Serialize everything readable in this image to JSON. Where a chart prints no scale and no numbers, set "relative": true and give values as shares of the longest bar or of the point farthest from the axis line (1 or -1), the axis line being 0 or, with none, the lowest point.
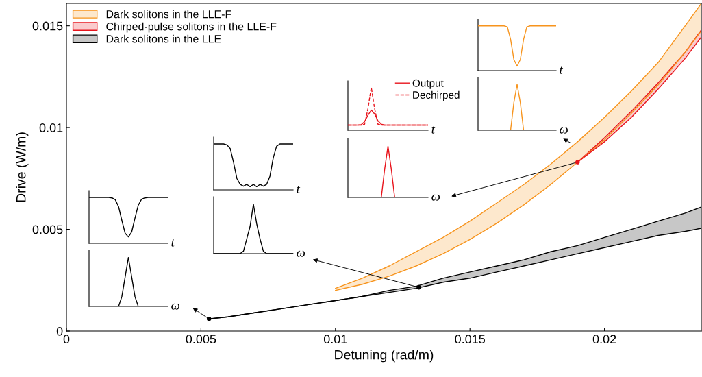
{
  "chart_data": [
    {
      "type": "line",
      "xlabel": "Detuning (rad/m)",
      "ylabel": "Drive (W/m)",
      "xlim": [
        0,
        0.0236
      ],
      "ylim": [
        0,
        0.0161
      ],
      "xticks": [
        0,
        0.005,
        0.01,
        0.015,
        0.02
      ],
      "yticks": [
        0,
        0.005,
        0.01,
        0.015
      ],
      "legend": "top left",
      "series": [
        {
          "name": "Dark solitons in the LLE-F",
          "color": "#f7941d",
          "x": [
            0.01,
            0.011,
            0.012,
            0.013,
            0.014,
            0.015,
            0.016,
            0.017,
            0.018,
            0.019,
            0.02,
            0.021,
            0.022,
            0.023,
            0.0236
          ],
          "values": [
            0.0021,
            0.0026,
            0.0032,
            0.0039,
            0.0046,
            0.0054,
            0.0063,
            0.0072,
            0.0082,
            0.0093,
            0.0105,
            0.0118,
            0.0132,
            0.015,
            0.0161
          ],
          "lower": [
            0.002,
            0.0023,
            0.0027,
            0.0032,
            0.0038,
            0.0045,
            0.0053,
            0.0062,
            0.0072,
            0.0083,
            0.0094,
            0.0107,
            0.0121,
            0.0137,
            0.01475
          ],
          "upper": [
            0.0021,
            0.0026,
            0.0032,
            0.0039,
            0.0046,
            0.0054,
            0.0063,
            0.0072,
            0.0082,
            0.0093,
            0.0105,
            0.0118,
            0.0132,
            0.015,
            0.0161
          ]
        },
        {
          "name": "Chirped-pulse solitons in the LLE-F",
          "color": "#e8141c",
          "x": [
            0.019,
            0.02,
            0.021,
            0.022,
            0.023,
            0.0236
          ],
          "values": [
            0.0083,
            0.0095,
            0.0108,
            0.0122,
            0.0137,
            0.0148
          ],
          "lower": [
            0.0083,
            0.0093,
            0.0105,
            0.0119,
            0.0134,
            0.01445
          ],
          "upper": [
            0.0083,
            0.0095,
            0.0108,
            0.0122,
            0.0137,
            0.0148
          ]
        },
        {
          "name": "Dark solitons in the LLE",
          "color": "#000000",
          "x": [
            0.0053,
            0.006,
            0.007,
            0.008,
            0.009,
            0.01,
            0.011,
            0.012,
            0.013,
            0.014,
            0.015,
            0.016,
            0.017,
            0.018,
            0.019,
            0.02,
            0.021,
            0.022,
            0.023,
            0.0236
          ],
          "values": [
            0.0006,
            0.0007,
            0.0009,
            0.0011,
            0.0013,
            0.0015,
            0.0017,
            0.002,
            0.0022,
            0.0026,
            0.0029,
            0.0032,
            0.0035,
            0.0039,
            0.0042,
            0.0046,
            0.005,
            0.0054,
            0.0058,
            0.0061
          ],
          "lower": [
            0.0006,
            0.0007,
            0.0009,
            0.0011,
            0.0013,
            0.0015,
            0.0017,
            0.0019,
            0.0021,
            0.0024,
            0.0026,
            0.0029,
            0.0032,
            0.0035,
            0.0038,
            0.0041,
            0.0044,
            0.0047,
            0.0049,
            0.00505
          ],
          "upper": [
            0.0006,
            0.0007,
            0.0009,
            0.0011,
            0.0013,
            0.0015,
            0.0017,
            0.002,
            0.0022,
            0.0026,
            0.0029,
            0.0032,
            0.0035,
            0.0039,
            0.0042,
            0.0046,
            0.005,
            0.0054,
            0.0058,
            0.0061
          ]
        },
        {
          "color": "#f7941d",
          "x": [
            0.01,
            0.011,
            0.012,
            0.013,
            0.014,
            0.015,
            0.016,
            0.017,
            0.018,
            0.019,
            0.02,
            0.021,
            0.022,
            0.023,
            0.0236
          ],
          "values": [
            0.002,
            0.0023,
            0.0027,
            0.0032,
            0.0038,
            0.0045,
            0.0053,
            0.0062,
            0.0072,
            0.0083,
            0.0094,
            0.0107,
            0.0121,
            0.0137,
            0.01475
          ]
        },
        {
          "color": "#e8141c",
          "x": [
            0.019,
            0.02,
            0.021,
            0.022,
            0.023,
            0.0236
          ],
          "values": [
            0.0083,
            0.0093,
            0.0105,
            0.0119,
            0.0134,
            0.01445
          ]
        },
        {
          "color": "#000000",
          "x": [
            0.0053,
            0.006,
            0.007,
            0.008,
            0.009,
            0.01,
            0.011,
            0.012,
            0.013,
            0.014,
            0.015,
            0.016,
            0.017,
            0.018,
            0.019,
            0.02,
            0.021,
            0.022,
            0.023,
            0.0236
          ],
          "values": [
            0.0006,
            0.0007,
            0.0009,
            0.0011,
            0.0013,
            0.0015,
            0.0017,
            0.0019,
            0.0021,
            0.0024,
            0.0026,
            0.0029,
            0.0032,
            0.0035,
            0.0038,
            0.0041,
            0.0044,
            0.0047,
            0.0049,
            0.00505
          ]
        },
        {
          "type": "scatter",
          "x": [
            0.0053,
            0.0131,
            0.019
          ],
          "values": [
            0.0006,
            0.00215,
            0.0083
          ],
          "colors": [
            "#000000",
            "#000000",
            "#e8141c"
          ],
          "marker": "circle"
        }
      ]
    },
    {
      "type": "line",
      "relative": true,
      "xlabel": "t",
      "categories": [
        null,
        null,
        null,
        null,
        null,
        null,
        null,
        null,
        null,
        null,
        null,
        null,
        null,
        null,
        null,
        null,
        null,
        null,
        null,
        null,
        null,
        null,
        null,
        null,
        null
      ],
      "series": [
        {
          "color": "#000000",
          "values": [
            1,
            1,
            1,
            1,
            1,
            1,
            1,
            0.99,
            0.95,
            0.8,
            0.5,
            0.22,
            0.14,
            0.25,
            0.55,
            0.83,
            0.96,
            0.99,
            1,
            1,
            1,
            1,
            1,
            1,
            1
          ]
        }
      ]
    },
    {
      "type": "line",
      "relative": true,
      "xlabel": "ω",
      "categories": [
        null,
        null,
        null,
        null,
        null,
        null,
        null,
        null,
        null,
        null,
        null,
        null,
        null,
        null,
        null,
        null,
        null,
        null,
        null,
        null,
        null,
        null,
        null,
        null,
        null
      ],
      "series": [
        {
          "color": "#000000",
          "values": [
            0,
            0,
            0,
            0,
            0,
            0,
            0,
            0,
            0,
            0,
            0.2,
            0.6,
            1,
            0.6,
            0.2,
            0,
            0,
            0,
            0,
            0,
            0,
            0,
            0,
            0,
            0
          ]
        }
      ]
    },
    {
      "type": "line",
      "relative": true,
      "xlabel": "t",
      "categories": [
        null,
        null,
        null,
        null,
        null,
        null,
        null,
        null,
        null,
        null,
        null,
        null,
        null,
        null,
        null,
        null,
        null,
        null,
        null,
        null,
        null,
        null,
        null,
        null,
        null
      ],
      "series": [
        {
          "color": "#000000",
          "values": [
            1,
            1,
            1,
            1,
            0.98,
            0.9,
            0.6,
            0.25,
            0.12,
            0.08,
            0.12,
            0.07,
            0.12,
            0.07,
            0.12,
            0.08,
            0.12,
            0.3,
            0.7,
            0.95,
            1,
            1,
            1,
            1,
            1
          ]
        }
      ]
    },
    {
      "type": "line",
      "relative": true,
      "xlabel": "ω",
      "categories": [
        null,
        null,
        null,
        null,
        null,
        null,
        null,
        null,
        null,
        null,
        null,
        null,
        null,
        null,
        null,
        null,
        null,
        null,
        null,
        null,
        null,
        null,
        null,
        null,
        null
      ],
      "series": [
        {
          "color": "#000000",
          "values": [
            0,
            0,
            0,
            0,
            0,
            0,
            0,
            0,
            0,
            0.05,
            0.3,
            0.55,
            1,
            0.6,
            0.3,
            0.05,
            0,
            0,
            0,
            0,
            0,
            0,
            0,
            0,
            0
          ]
        }
      ]
    },
    {
      "type": "line",
      "relative": true,
      "xlabel": "t",
      "legend": "top right",
      "categories": [
        null,
        null,
        null,
        null,
        null,
        null,
        null,
        null,
        null,
        null,
        null,
        null,
        null,
        null,
        null,
        null,
        null,
        null,
        null,
        null,
        null,
        null,
        null,
        null,
        null
      ],
      "series": [
        {
          "name": "Output",
          "color": "#e8141c",
          "values": [
            0.12,
            0.12,
            0.12,
            0.12,
            0.13,
            0.2,
            0.35,
            0.47,
            0.38,
            0.22,
            0.14,
            0.12,
            0.12,
            0.12,
            0.12,
            0.12,
            0.12,
            0.12,
            0.12,
            0.12,
            0.12,
            0.12,
            0.12,
            0.12,
            0.12
          ]
        },
        {
          "name": "Dechirped",
          "color": "#e8141c",
          "line_style": "dashed",
          "values": [
            0.12,
            0.12,
            0.12,
            0.12,
            0.12,
            0.14,
            0.5,
            1,
            0.5,
            0.14,
            0.12,
            0.12,
            0.12,
            0.12,
            0.12,
            0.12,
            0.12,
            0.12,
            0.12,
            0.12,
            0.12,
            0.12,
            0.12,
            0.12,
            0.12
          ]
        }
      ]
    },
    {
      "type": "line",
      "relative": true,
      "xlabel": "ω",
      "categories": [
        null,
        null,
        null,
        null,
        null,
        null,
        null,
        null,
        null,
        null,
        null,
        null,
        null,
        null,
        null,
        null,
        null,
        null,
        null,
        null,
        null,
        null,
        null,
        null,
        null
      ],
      "series": [
        {
          "color": "#e8141c",
          "values": [
            0,
            0,
            0,
            0,
            0,
            0,
            0,
            0,
            0,
            0,
            0,
            0.55,
            1,
            0.55,
            0,
            0,
            0,
            0,
            0,
            0,
            0,
            0,
            0,
            0,
            0
          ]
        }
      ]
    },
    {
      "type": "line",
      "relative": true,
      "xlabel": "t",
      "categories": [
        null,
        null,
        null,
        null,
        null,
        null,
        null,
        null,
        null,
        null,
        null,
        null,
        null,
        null,
        null,
        null,
        null,
        null,
        null,
        null,
        null,
        null,
        null,
        null,
        null
      ],
      "series": [
        {
          "color": "#f7941d",
          "values": [
            1,
            1,
            1,
            1,
            1,
            1,
            1,
            1,
            1,
            0.98,
            0.7,
            0.25,
            0.1,
            0.25,
            0.7,
            0.98,
            1,
            1,
            1,
            1,
            1,
            1,
            1,
            1,
            1
          ]
        }
      ]
    },
    {
      "type": "line",
      "relative": true,
      "xlabel": "ω",
      "categories": [
        null,
        null,
        null,
        null,
        null,
        null,
        null,
        null,
        null,
        null,
        null,
        null,
        null,
        null,
        null,
        null,
        null,
        null,
        null,
        null,
        null,
        null,
        null,
        null,
        null
      ],
      "series": [
        {
          "color": "#f7941d",
          "values": [
            0,
            0,
            0,
            0,
            0,
            0,
            0,
            0,
            0,
            0,
            0,
            0.6,
            1,
            0.6,
            0,
            0,
            0,
            0,
            0,
            0,
            0,
            0,
            0,
            0,
            0
          ]
        }
      ]
    }
  ]
}
